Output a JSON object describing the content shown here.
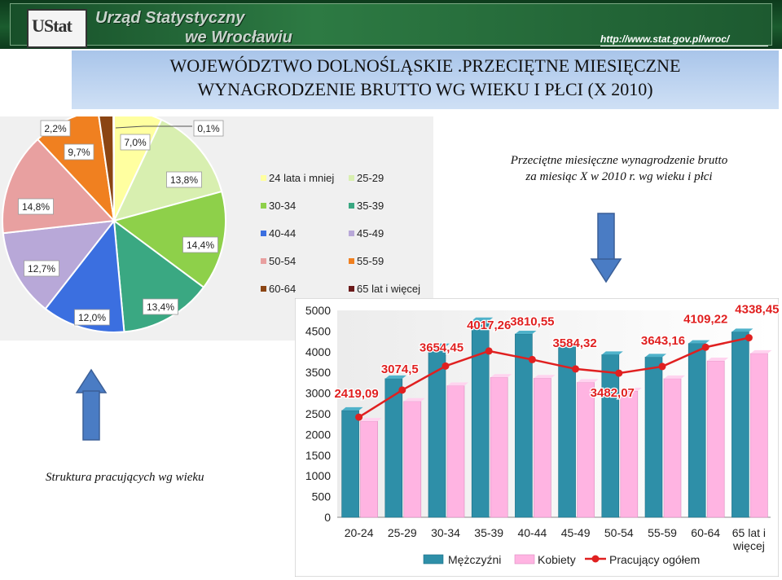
{
  "header": {
    "logo_text": "UStat",
    "office_line1": "Urząd Statystyczny",
    "office_line2": "we Wrocławiu",
    "url": "http://www.stat.gov.pl/wroc/"
  },
  "title": {
    "line1": "WOJEWÓDZTWO  DOLNOŚLĄSKIE .PRZECIĘTNE MIESIĘCZNE",
    "line2": "WYNAGRODZENIE BRUTTO WG WIEKU I PŁCI (X 2010)"
  },
  "bar_subtitle": {
    "line1": "Przeciętne miesięczne wynagrodzenie  brutto",
    "line2": "za miesiąc X w 2010 r. wg wieku i płci"
  },
  "pie_caption": "Struktura pracujących wg wieku",
  "colors": {
    "banner": "#1b5c2e",
    "title_bg": "#b7cfee",
    "arrow": "#4a7cc4",
    "men": "#2e8fa8",
    "women": "#ffb4e2",
    "total": "#e02020"
  },
  "chart_data": [
    {
      "type": "pie",
      "categories": [
        "24 lata i mniej",
        "25-29",
        "30-34",
        "35-39",
        "40-44",
        "45-49",
        "50-54",
        "55-59",
        "60-64",
        "65 lat i więcej"
      ],
      "labels": [
        "7,0%",
        "13,8%",
        "14,4%",
        "13,4%",
        "12,0%",
        "12,7%",
        "14,8%",
        "9,7%",
        "2,2%",
        "0,1%"
      ],
      "values": [
        7.0,
        13.8,
        14.4,
        13.4,
        12.0,
        12.7,
        14.8,
        9.7,
        2.2,
        0.1
      ],
      "colors": [
        "#ffffa0",
        "#d8efb0",
        "#8ed04a",
        "#3aa882",
        "#3b6fe0",
        "#b8a8d8",
        "#e8a0a0",
        "#f08020",
        "#8b4513",
        "#6b1a1a"
      ],
      "legend": [
        "24 lata i mniej",
        "25-29",
        "30-34",
        "35-39",
        "40-44",
        "45-49",
        "50-54",
        "55-59",
        "60-64",
        "65 lat i więcej"
      ],
      "legend_position": "right"
    },
    {
      "type": "bar",
      "categories": [
        "20-24",
        "25-29",
        "30-34",
        "35-39",
        "40-44",
        "45-49",
        "50-54",
        "55-59",
        "60-64",
        "65 lat i\nwięcej"
      ],
      "series": [
        {
          "name": "Mężczyźni",
          "type": "bar",
          "values": [
            2580,
            3350,
            4120,
            4750,
            4430,
            4110,
            3930,
            3870,
            4200,
            4480
          ]
        },
        {
          "name": "Kobiety",
          "type": "bar",
          "values": [
            2320,
            2800,
            3180,
            3380,
            3360,
            3260,
            3050,
            3350,
            3780,
            3960
          ]
        },
        {
          "name": "Pracujący ogółem",
          "type": "line",
          "values": [
            2419.09,
            3074.5,
            3654.45,
            4017.26,
            3810.55,
            3584.32,
            3482.07,
            3643.16,
            4109.22,
            4338.45
          ],
          "labels": [
            "2419,09",
            "3074,5",
            "3654,45",
            "4017,26",
            "3810,55",
            "3584,32",
            "3482,07",
            "3643,16",
            "4109,22",
            "4338,45"
          ]
        }
      ],
      "ylim": [
        0,
        5000
      ],
      "yticks": [
        "0",
        "500",
        "1000",
        "1500",
        "2000",
        "2500",
        "3000",
        "3500",
        "4000",
        "4500",
        "5000"
      ],
      "grid": false,
      "legend_position": "bottom"
    }
  ]
}
